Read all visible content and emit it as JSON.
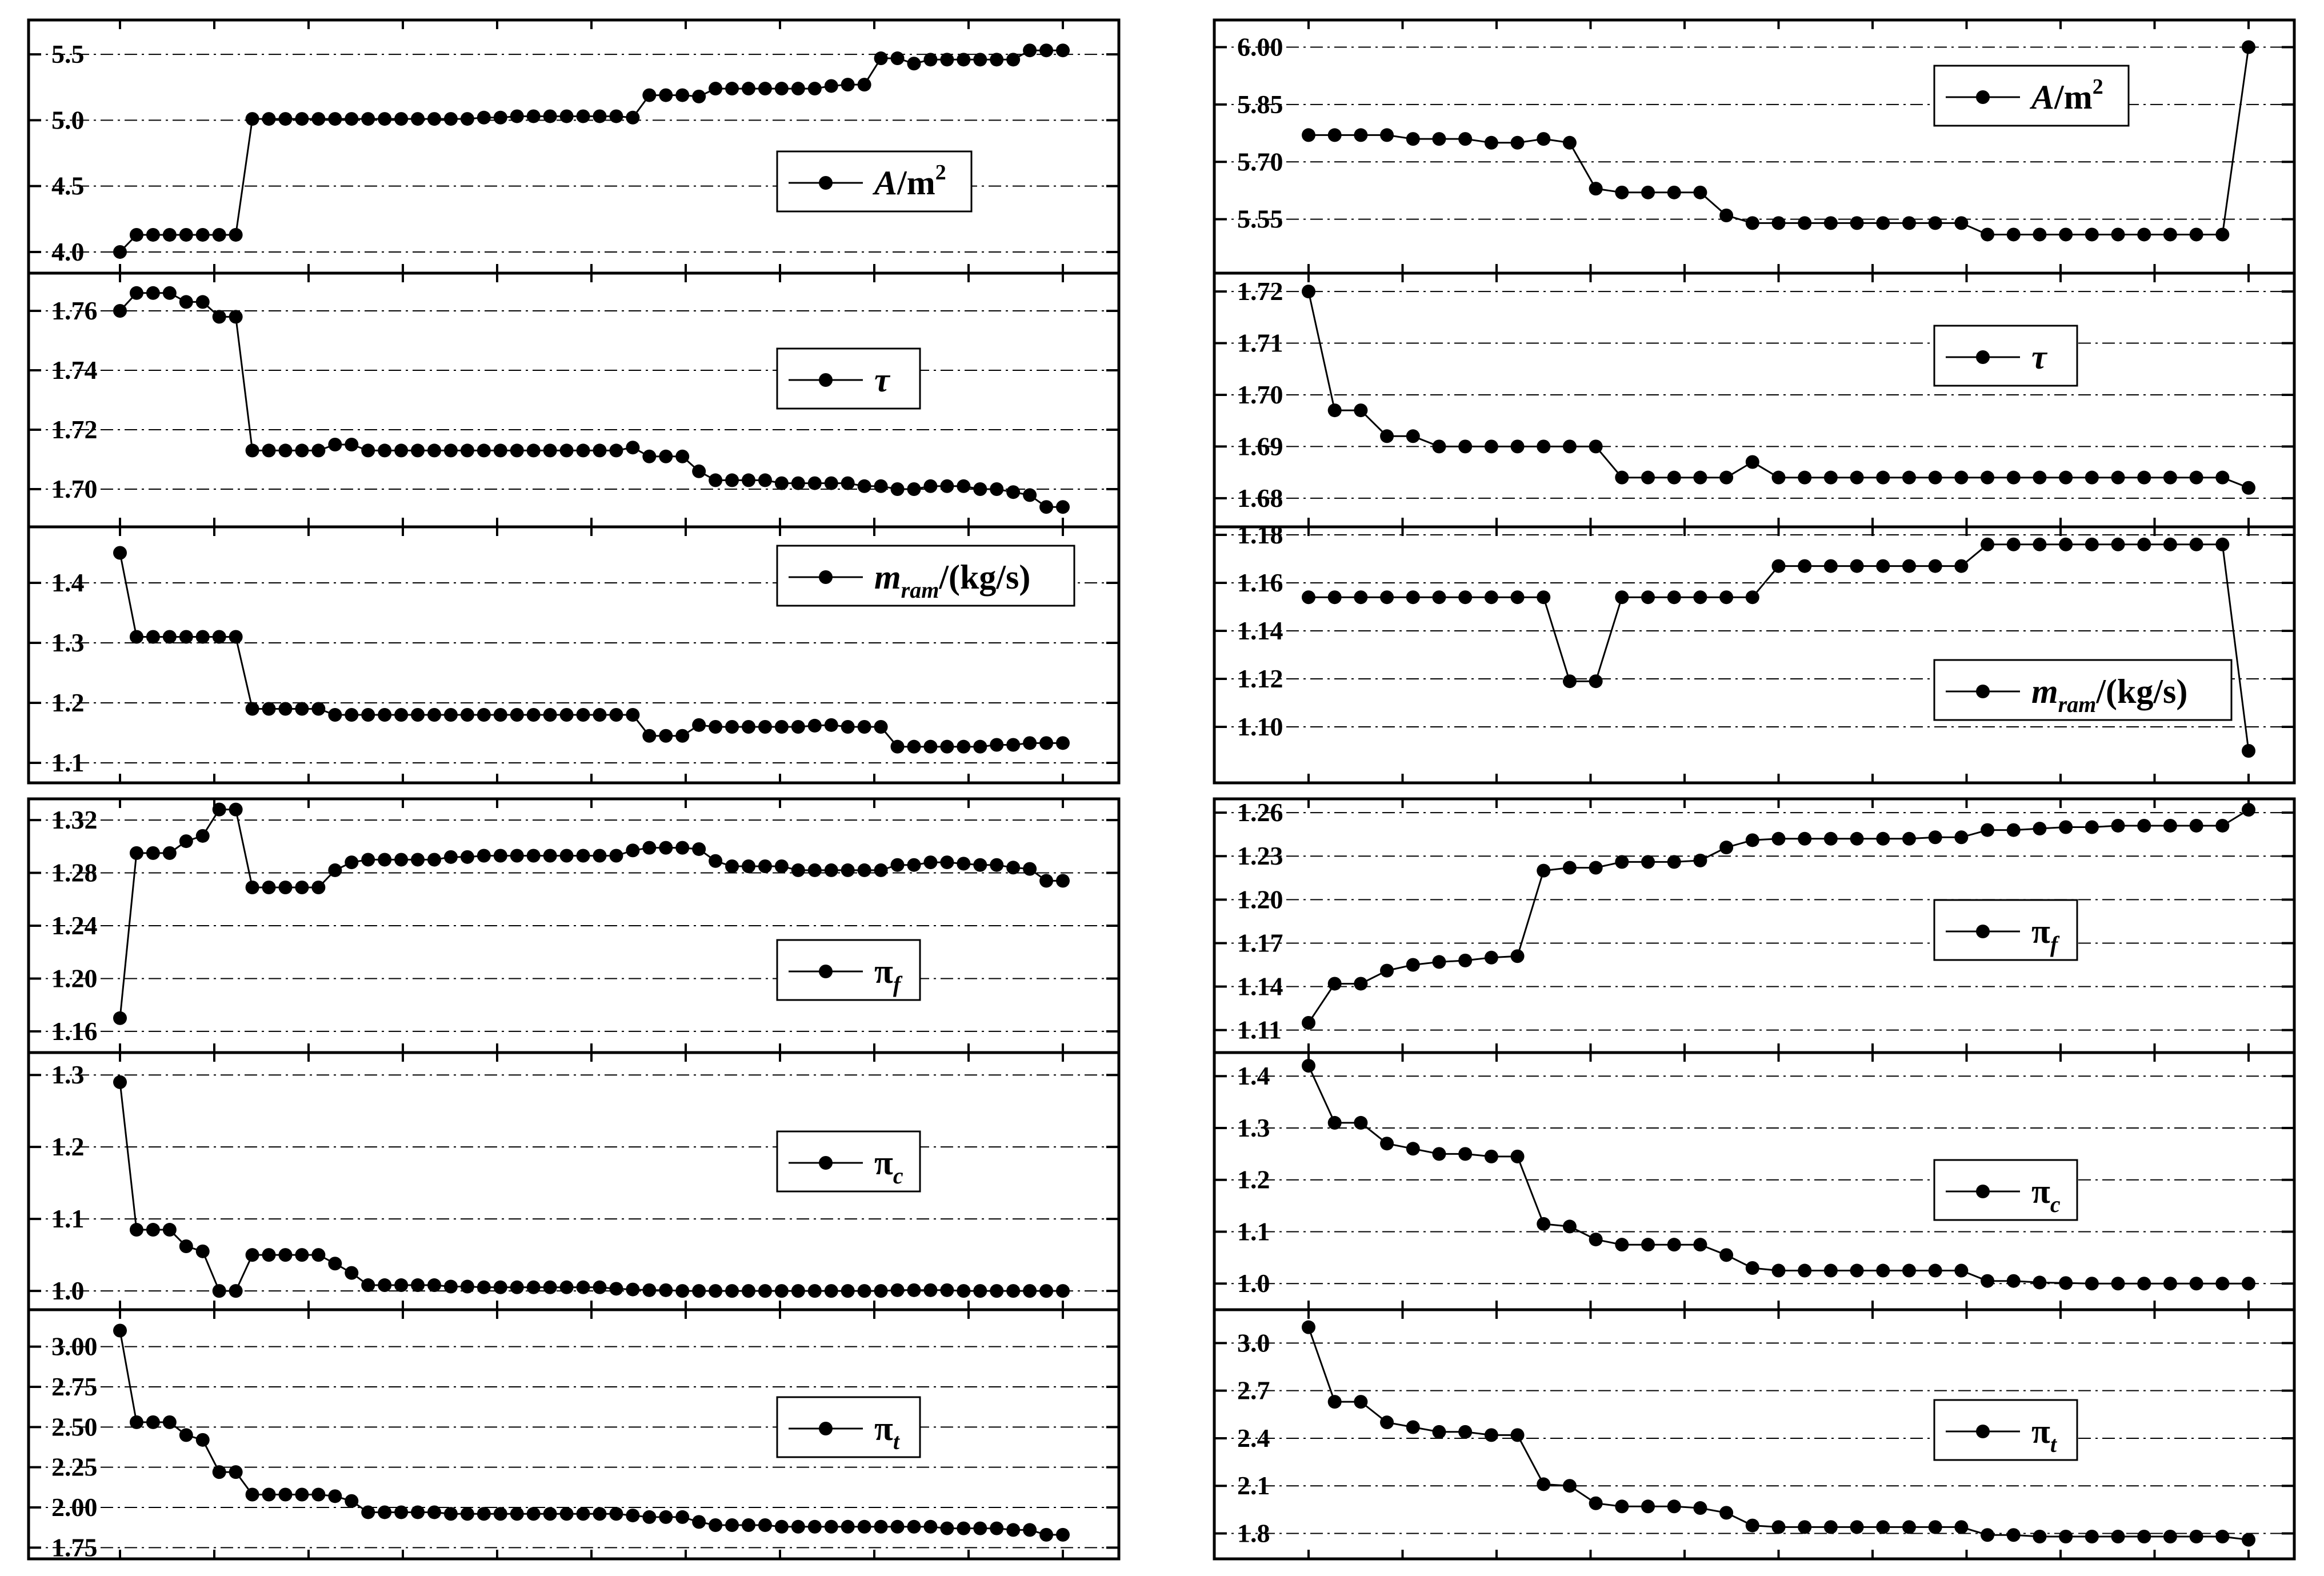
{
  "colors": {
    "line": "#000000",
    "marker": "#000000",
    "grid": "#000000",
    "frame": "#000000",
    "background": "#ffffff"
  },
  "chart_data": [
    {
      "group": "left-top",
      "type": "line",
      "series": [
        {
          "legend": {
            "base": "A",
            "sub": "",
            "suffix": "/m",
            "sup": "2",
            "italic_base": true
          },
          "yticks": [
            "4.0",
            "4.5",
            "5.0",
            "5.5"
          ],
          "ylim": [
            3.9,
            5.7
          ],
          "values": [
            4.0,
            4.13,
            4.13,
            4.13,
            4.13,
            4.13,
            4.13,
            4.13,
            5.01,
            5.01,
            5.01,
            5.01,
            5.01,
            5.01,
            5.01,
            5.01,
            5.01,
            5.01,
            5.01,
            5.01,
            5.01,
            5.01,
            5.02,
            5.02,
            5.03,
            5.03,
            5.03,
            5.03,
            5.03,
            5.03,
            5.03,
            5.02,
            5.19,
            5.19,
            5.19,
            5.18,
            5.24,
            5.24,
            5.24,
            5.24,
            5.24,
            5.24,
            5.24,
            5.26,
            5.27,
            5.27,
            5.47,
            5.47,
            5.43,
            5.46,
            5.46,
            5.46,
            5.46,
            5.46,
            5.46,
            5.53,
            5.53,
            5.53
          ]
        },
        {
          "legend": {
            "base": "τ",
            "sub": "",
            "suffix": "",
            "sup": "",
            "italic_base": true
          },
          "yticks": [
            "1.70",
            "1.72",
            "1.74",
            "1.76"
          ],
          "ylim": [
            1.69,
            1.77
          ],
          "values": [
            1.76,
            1.766,
            1.766,
            1.766,
            1.763,
            1.763,
            1.758,
            1.758,
            1.713,
            1.713,
            1.713,
            1.713,
            1.713,
            1.715,
            1.715,
            1.713,
            1.713,
            1.713,
            1.713,
            1.713,
            1.713,
            1.713,
            1.713,
            1.713,
            1.713,
            1.713,
            1.713,
            1.713,
            1.713,
            1.713,
            1.713,
            1.714,
            1.711,
            1.711,
            1.711,
            1.706,
            1.703,
            1.703,
            1.703,
            1.703,
            1.702,
            1.702,
            1.702,
            1.702,
            1.702,
            1.701,
            1.701,
            1.7,
            1.7,
            1.701,
            1.701,
            1.701,
            1.7,
            1.7,
            1.699,
            1.698,
            1.694,
            1.694
          ]
        },
        {
          "legend": {
            "base": "m",
            "sub": "ram",
            "suffix": "/(kg/s)",
            "sup": "",
            "italic_base": true
          },
          "yticks": [
            "1.1",
            "1.2",
            "1.3",
            "1.4"
          ],
          "ylim": [
            1.08,
            1.48
          ],
          "values": [
            1.45,
            1.31,
            1.31,
            1.31,
            1.31,
            1.31,
            1.31,
            1.31,
            1.19,
            1.19,
            1.19,
            1.19,
            1.19,
            1.18,
            1.18,
            1.18,
            1.18,
            1.18,
            1.18,
            1.18,
            1.18,
            1.18,
            1.18,
            1.18,
            1.18,
            1.18,
            1.18,
            1.18,
            1.18,
            1.18,
            1.18,
            1.18,
            1.145,
            1.145,
            1.145,
            1.163,
            1.16,
            1.16,
            1.16,
            1.16,
            1.16,
            1.16,
            1.162,
            1.163,
            1.16,
            1.16,
            1.16,
            1.127,
            1.127,
            1.127,
            1.127,
            1.127,
            1.127,
            1.13,
            1.13,
            1.133,
            1.133,
            1.133
          ]
        }
      ]
    },
    {
      "group": "right-top",
      "type": "line",
      "series": [
        {
          "legend": {
            "base": "A",
            "sub": "",
            "suffix": "/m",
            "sup": "2",
            "italic_base": true
          },
          "yticks": [
            "5.55",
            "5.70",
            "5.85",
            "6.00"
          ],
          "ylim": [
            5.43,
            6.05
          ],
          "values": [
            5.77,
            5.77,
            5.77,
            5.77,
            5.76,
            5.76,
            5.76,
            5.75,
            5.75,
            5.76,
            5.75,
            5.63,
            5.62,
            5.62,
            5.62,
            5.62,
            5.56,
            5.54,
            5.54,
            5.54,
            5.54,
            5.54,
            5.54,
            5.54,
            5.54,
            5.54,
            5.51,
            5.51,
            5.51,
            5.51,
            5.51,
            5.51,
            5.51,
            5.51,
            5.51,
            5.51,
            6.0
          ]
        },
        {
          "legend": {
            "base": "τ",
            "sub": "",
            "suffix": "",
            "sup": "",
            "italic_base": true
          },
          "yticks": [
            "1.68",
            "1.69",
            "1.70",
            "1.71",
            "1.72"
          ],
          "ylim": [
            1.676,
            1.722
          ],
          "values": [
            1.72,
            1.697,
            1.697,
            1.692,
            1.692,
            1.69,
            1.69,
            1.69,
            1.69,
            1.69,
            1.69,
            1.69,
            1.684,
            1.684,
            1.684,
            1.684,
            1.684,
            1.687,
            1.684,
            1.684,
            1.684,
            1.684,
            1.684,
            1.684,
            1.684,
            1.684,
            1.684,
            1.684,
            1.684,
            1.684,
            1.684,
            1.684,
            1.684,
            1.684,
            1.684,
            1.684,
            1.682
          ]
        },
        {
          "legend": {
            "base": "m",
            "sub": "ram",
            "suffix": "/(kg/s)",
            "sup": "",
            "italic_base": true
          },
          "yticks": [
            "1.10",
            "1.12",
            "1.14",
            "1.16",
            "1.18"
          ],
          "ylim": [
            1.08,
            1.18
          ],
          "values": [
            1.154,
            1.154,
            1.154,
            1.154,
            1.154,
            1.154,
            1.154,
            1.154,
            1.154,
            1.154,
            1.119,
            1.119,
            1.154,
            1.154,
            1.154,
            1.154,
            1.154,
            1.154,
            1.167,
            1.167,
            1.167,
            1.167,
            1.167,
            1.167,
            1.167,
            1.167,
            1.176,
            1.176,
            1.176,
            1.176,
            1.176,
            1.176,
            1.176,
            1.176,
            1.176,
            1.176,
            1.09
          ]
        }
      ]
    },
    {
      "group": "left-bottom",
      "type": "line",
      "series": [
        {
          "legend": {
            "base": "π",
            "sub": "f",
            "suffix": "",
            "sup": "",
            "italic_base": false
          },
          "yticks": [
            "1.16",
            "1.20",
            "1.24",
            "1.28",
            "1.32"
          ],
          "ylim": [
            1.15,
            1.33
          ],
          "values": [
            1.17,
            1.295,
            1.295,
            1.295,
            1.304,
            1.308,
            1.328,
            1.328,
            1.269,
            1.269,
            1.269,
            1.269,
            1.269,
            1.282,
            1.288,
            1.29,
            1.29,
            1.29,
            1.29,
            1.29,
            1.292,
            1.292,
            1.293,
            1.293,
            1.293,
            1.293,
            1.293,
            1.293,
            1.293,
            1.293,
            1.293,
            1.297,
            1.299,
            1.299,
            1.299,
            1.298,
            1.289,
            1.285,
            1.285,
            1.285,
            1.285,
            1.282,
            1.282,
            1.282,
            1.282,
            1.282,
            1.282,
            1.286,
            1.286,
            1.288,
            1.288,
            1.287,
            1.286,
            1.286,
            1.284,
            1.283,
            1.274,
            1.274
          ]
        },
        {
          "legend": {
            "base": "π",
            "sub": "c",
            "suffix": "",
            "sup": "",
            "italic_base": false
          },
          "yticks": [
            "1.0",
            "1.1",
            "1.2",
            "1.3"
          ],
          "ylim": [
            0.985,
            1.32
          ],
          "values": [
            1.29,
            1.085,
            1.085,
            1.085,
            1.062,
            1.055,
            1.0,
            1.0,
            1.05,
            1.05,
            1.05,
            1.05,
            1.05,
            1.038,
            1.025,
            1.008,
            1.008,
            1.008,
            1.008,
            1.008,
            1.006,
            1.006,
            1.005,
            1.005,
            1.005,
            1.005,
            1.005,
            1.005,
            1.005,
            1.005,
            1.003,
            1.002,
            1.001,
            1.001,
            1.0,
            1.0,
            1.0,
            1.0,
            1.0,
            1.0,
            1.0,
            1.0,
            1.0,
            1.0,
            1.0,
            1.0,
            1.0,
            1.001,
            1.001,
            1.001,
            1.001,
            1.0,
            1.0,
            1.0,
            1.0,
            1.0,
            1.0,
            1.0
          ]
        },
        {
          "legend": {
            "base": "π",
            "sub": "t",
            "suffix": "",
            "sup": "",
            "italic_base": false
          },
          "yticks": [
            "1.75",
            "2.00",
            "2.25",
            "2.50",
            "2.75",
            "3.00"
          ],
          "ylim": [
            1.73,
            3.18
          ],
          "values": [
            3.1,
            2.53,
            2.53,
            2.53,
            2.45,
            2.42,
            2.22,
            2.22,
            2.08,
            2.08,
            2.08,
            2.08,
            2.08,
            2.07,
            2.04,
            1.97,
            1.97,
            1.97,
            1.97,
            1.97,
            1.96,
            1.96,
            1.96,
            1.96,
            1.96,
            1.96,
            1.96,
            1.96,
            1.96,
            1.96,
            1.96,
            1.95,
            1.94,
            1.94,
            1.94,
            1.91,
            1.89,
            1.89,
            1.89,
            1.89,
            1.88,
            1.88,
            1.88,
            1.88,
            1.88,
            1.88,
            1.88,
            1.88,
            1.88,
            1.88,
            1.87,
            1.87,
            1.87,
            1.87,
            1.86,
            1.86,
            1.83,
            1.83
          ]
        }
      ]
    },
    {
      "group": "right-bottom",
      "type": "line",
      "series": [
        {
          "legend": {
            "base": "π",
            "sub": "f",
            "suffix": "",
            "sup": "",
            "italic_base": false
          },
          "yticks": [
            "1.11",
            "1.14",
            "1.17",
            "1.20",
            "1.23",
            "1.26"
          ],
          "ylim": [
            1.1,
            1.264
          ],
          "values": [
            1.115,
            1.142,
            1.142,
            1.151,
            1.155,
            1.157,
            1.158,
            1.16,
            1.161,
            1.22,
            1.222,
            1.222,
            1.226,
            1.226,
            1.226,
            1.227,
            1.236,
            1.241,
            1.242,
            1.242,
            1.242,
            1.242,
            1.242,
            1.242,
            1.243,
            1.243,
            1.248,
            1.248,
            1.249,
            1.25,
            1.25,
            1.251,
            1.251,
            1.251,
            1.251,
            1.251,
            1.262
          ]
        },
        {
          "legend": {
            "base": "π",
            "sub": "c",
            "suffix": "",
            "sup": "",
            "italic_base": false
          },
          "yticks": [
            "1.0",
            "1.1",
            "1.2",
            "1.3",
            "1.4"
          ],
          "ylim": [
            0.965,
            1.43
          ],
          "values": [
            1.42,
            1.31,
            1.31,
            1.27,
            1.26,
            1.25,
            1.25,
            1.245,
            1.245,
            1.115,
            1.11,
            1.085,
            1.075,
            1.075,
            1.075,
            1.075,
            1.055,
            1.03,
            1.025,
            1.025,
            1.025,
            1.025,
            1.025,
            1.025,
            1.025,
            1.025,
            1.005,
            1.005,
            1.002,
            1.001,
            1.0,
            1.0,
            1.0,
            1.0,
            1.0,
            1.0,
            1.0
          ]
        },
        {
          "legend": {
            "base": "π",
            "sub": "t",
            "suffix": "",
            "sup": "",
            "italic_base": false
          },
          "yticks": [
            "1.8",
            "2.1",
            "2.4",
            "2.7",
            "3.0"
          ],
          "ylim": [
            1.69,
            3.16
          ],
          "values": [
            3.1,
            2.63,
            2.63,
            2.5,
            2.47,
            2.44,
            2.44,
            2.42,
            2.42,
            2.11,
            2.1,
            1.99,
            1.97,
            1.97,
            1.97,
            1.96,
            1.93,
            1.85,
            1.84,
            1.84,
            1.84,
            1.84,
            1.84,
            1.84,
            1.84,
            1.84,
            1.79,
            1.79,
            1.78,
            1.78,
            1.78,
            1.78,
            1.78,
            1.78,
            1.78,
            1.78,
            1.76
          ]
        }
      ]
    }
  ]
}
